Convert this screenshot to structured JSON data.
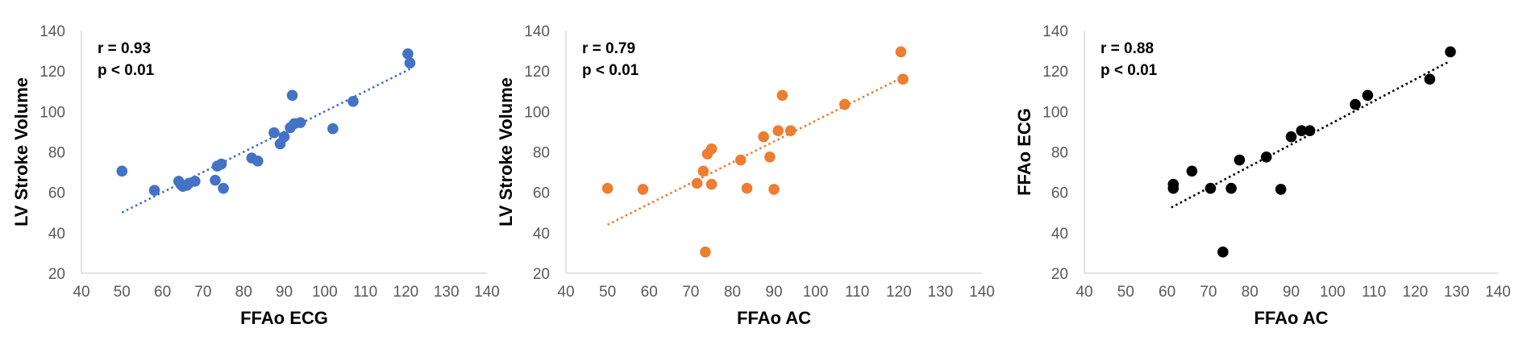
{
  "chart_data": [
    {
      "type": "scatter",
      "xlabel": "FFAo ECG",
      "ylabel": "LV Stroke Volume",
      "xlim": [
        40,
        140
      ],
      "ylim": [
        20,
        140
      ],
      "xticks": [
        40,
        50,
        60,
        70,
        80,
        90,
        100,
        110,
        120,
        130,
        140
      ],
      "yticks": [
        20,
        40,
        60,
        80,
        100,
        120,
        140
      ],
      "grid": false,
      "color": "#4472C4",
      "annotations": [
        "r = 0.93",
        "p < 0.01"
      ],
      "trendline": {
        "style": "dotted",
        "x": [
          50,
          121
        ],
        "y": [
          50,
          121
        ]
      },
      "points": [
        {
          "x": 50,
          "y": 70.5
        },
        {
          "x": 58,
          "y": 61
        },
        {
          "x": 64,
          "y": 65.5
        },
        {
          "x": 64.5,
          "y": 64
        },
        {
          "x": 65,
          "y": 63
        },
        {
          "x": 66,
          "y": 63.5
        },
        {
          "x": 66.5,
          "y": 64.5
        },
        {
          "x": 68,
          "y": 65.5
        },
        {
          "x": 73,
          "y": 66
        },
        {
          "x": 73.5,
          "y": 73
        },
        {
          "x": 74.5,
          "y": 74
        },
        {
          "x": 75,
          "y": 62
        },
        {
          "x": 82,
          "y": 77
        },
        {
          "x": 83.5,
          "y": 75.5
        },
        {
          "x": 87.5,
          "y": 89.5
        },
        {
          "x": 89,
          "y": 84
        },
        {
          "x": 90,
          "y": 87.5
        },
        {
          "x": 91.5,
          "y": 92
        },
        {
          "x": 92,
          "y": 108
        },
        {
          "x": 92.5,
          "y": 94
        },
        {
          "x": 94,
          "y": 94.5
        },
        {
          "x": 102,
          "y": 91.5
        },
        {
          "x": 107,
          "y": 105
        },
        {
          "x": 120.5,
          "y": 128.5
        },
        {
          "x": 121,
          "y": 124
        }
      ]
    },
    {
      "type": "scatter",
      "xlabel": "FFAo AC",
      "ylabel": "LV Stroke Volume",
      "xlim": [
        40,
        140
      ],
      "ylim": [
        20,
        140
      ],
      "xticks": [
        40,
        50,
        60,
        70,
        80,
        90,
        100,
        110,
        120,
        130,
        140
      ],
      "yticks": [
        20,
        40,
        60,
        80,
        100,
        120,
        140
      ],
      "grid": false,
      "color": "#ED7D31",
      "annotations": [
        "r = 0.79",
        "p < 0.01"
      ],
      "trendline": {
        "style": "dotted",
        "x": [
          50,
          121
        ],
        "y": [
          44,
          117
        ]
      },
      "points": [
        {
          "x": 50,
          "y": 62
        },
        {
          "x": 58.5,
          "y": 61.5
        },
        {
          "x": 71.5,
          "y": 64.5
        },
        {
          "x": 73,
          "y": 70.5
        },
        {
          "x": 73.5,
          "y": 30.5
        },
        {
          "x": 74,
          "y": 79
        },
        {
          "x": 75,
          "y": 81.5
        },
        {
          "x": 75,
          "y": 64
        },
        {
          "x": 82,
          "y": 76
        },
        {
          "x": 83.5,
          "y": 62
        },
        {
          "x": 87.5,
          "y": 87.5
        },
        {
          "x": 89,
          "y": 77.5
        },
        {
          "x": 90,
          "y": 61.5
        },
        {
          "x": 91,
          "y": 90.5
        },
        {
          "x": 92,
          "y": 108
        },
        {
          "x": 94,
          "y": 90.5
        },
        {
          "x": 107,
          "y": 103.5
        },
        {
          "x": 120.5,
          "y": 129.5
        },
        {
          "x": 121,
          "y": 116
        }
      ]
    },
    {
      "type": "scatter",
      "xlabel": "FFAo AC",
      "ylabel": "FFAo ECG",
      "xlim": [
        40,
        140
      ],
      "ylim": [
        20,
        140
      ],
      "xticks": [
        40,
        50,
        60,
        70,
        80,
        90,
        100,
        110,
        120,
        130,
        140
      ],
      "yticks": [
        20,
        40,
        60,
        80,
        100,
        120,
        140
      ],
      "grid": false,
      "color": "#000000",
      "annotations": [
        "r = 0.88",
        "p < 0.01"
      ],
      "trendline": {
        "style": "dotted",
        "x": [
          61,
          128
        ],
        "y": [
          52.5,
          124.5
        ]
      },
      "points": [
        {
          "x": 61.5,
          "y": 62
        },
        {
          "x": 61.5,
          "y": 64
        },
        {
          "x": 66,
          "y": 70.5
        },
        {
          "x": 70.5,
          "y": 62
        },
        {
          "x": 73.5,
          "y": 30.5
        },
        {
          "x": 75.5,
          "y": 62
        },
        {
          "x": 77.5,
          "y": 76
        },
        {
          "x": 84,
          "y": 77.5
        },
        {
          "x": 87.5,
          "y": 61.5
        },
        {
          "x": 90,
          "y": 87.5
        },
        {
          "x": 92.5,
          "y": 90.5
        },
        {
          "x": 94.5,
          "y": 90.5
        },
        {
          "x": 105.5,
          "y": 103.5
        },
        {
          "x": 108.5,
          "y": 108
        },
        {
          "x": 123.5,
          "y": 116
        },
        {
          "x": 128.5,
          "y": 129.5
        }
      ]
    }
  ]
}
